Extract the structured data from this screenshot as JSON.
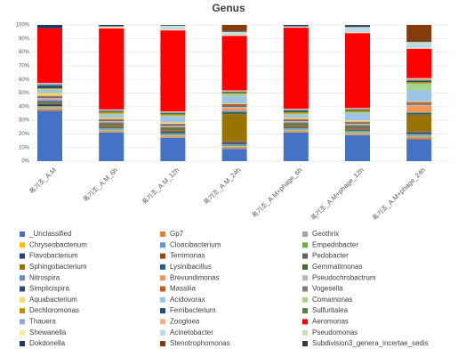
{
  "chart_data": {
    "type": "stacked_bar",
    "title": "Genus",
    "categories": [
      "폭기조_A.M",
      "폭기조_A.M_6h",
      "폭기조_A.M_12h",
      "폭기조_A.M_24h",
      "폭기조_A.M+phage_6h",
      "폭기조_A.M+phage_12h",
      "폭기조_A.M+phage_24h"
    ],
    "ylim": [
      0,
      100
    ],
    "yticks": [
      {
        "value": 0,
        "label": "0%"
      },
      {
        "value": 10,
        "label": "10%"
      },
      {
        "value": 20,
        "label": "20%"
      },
      {
        "value": 30,
        "label": "30%"
      },
      {
        "value": 40,
        "label": "40%"
      },
      {
        "value": 50,
        "label": "50%"
      },
      {
        "value": 60,
        "label": "60%"
      },
      {
        "value": 70,
        "label": "70%"
      },
      {
        "value": 80,
        "label": "80%"
      },
      {
        "value": 90,
        "label": "90%"
      },
      {
        "value": 100,
        "label": "100%"
      }
    ],
    "grid": true,
    "legend": "bottom",
    "series": [
      {
        "name": "_Unclassified",
        "color": "#4472C4",
        "values": [
          37,
          21,
          17,
          9,
          21,
          19,
          16
        ]
      },
      {
        "name": "Gp7",
        "color": "#ED7D31",
        "values": [
          1,
          0.5,
          0.5,
          0.5,
          0.5,
          0.5,
          1
        ]
      },
      {
        "name": "Geothrix",
        "color": "#A5A5A5",
        "values": [
          1,
          1,
          1,
          1,
          1,
          1,
          1
        ]
      },
      {
        "name": "Chryseobacterium",
        "color": "#FFC000",
        "values": [
          0.5,
          0.5,
          0.5,
          0.5,
          0.5,
          0.5,
          0.5
        ]
      },
      {
        "name": "Cloacibacterium",
        "color": "#5B9BD5",
        "values": [
          0.5,
          1,
          1,
          1,
          1,
          1,
          1
        ]
      },
      {
        "name": "Empedobacter",
        "color": "#70AD47",
        "values": [
          0.5,
          0.5,
          0.5,
          0.5,
          0.5,
          0.5,
          0.5
        ]
      },
      {
        "name": "Flavobacterium",
        "color": "#264478",
        "values": [
          1,
          0.5,
          1,
          1,
          0.5,
          0.5,
          1
        ]
      },
      {
        "name": "Terrimonas",
        "color": "#9E480E",
        "values": [
          0.5,
          0.5,
          0.5,
          0.5,
          0.5,
          0.5,
          0.5
        ]
      },
      {
        "name": "Pedobacter",
        "color": "#636363",
        "values": [
          0.5,
          0.5,
          0.5,
          0.5,
          0.5,
          0.5,
          0.5
        ]
      },
      {
        "name": "Sphingobacterium",
        "color": "#997300",
        "values": [
          0.5,
          1,
          1,
          20,
          1,
          1,
          12
        ]
      },
      {
        "name": "Lysinibacillus",
        "color": "#255E91",
        "values": [
          0.5,
          0.5,
          0.5,
          0.5,
          0.5,
          0.5,
          0.5
        ]
      },
      {
        "name": "Gemmatimonas",
        "color": "#43682B",
        "values": [
          0.5,
          0.5,
          0.5,
          1,
          0.5,
          0.5,
          1
        ]
      },
      {
        "name": "Nitrospira",
        "color": "#698ED0",
        "values": [
          1,
          0.5,
          0.5,
          1,
          0.5,
          0.5,
          0.5
        ]
      },
      {
        "name": "Brevundimonas",
        "color": "#F1975A",
        "values": [
          0.5,
          0.5,
          0.5,
          2,
          0.5,
          0.5,
          5
        ]
      },
      {
        "name": "Pseudochrobactrum",
        "color": "#B7B7B7",
        "values": [
          1,
          0.5,
          0.5,
          1,
          0.5,
          0.5,
          0.5
        ]
      },
      {
        "name": "Simplicispira",
        "color": "#2F4B7C",
        "values": [
          0.5,
          0.5,
          0.5,
          0.5,
          0.5,
          0.5,
          0.5
        ]
      },
      {
        "name": "Massilia",
        "color": "#C55A11",
        "values": [
          0.5,
          0.5,
          0.5,
          1,
          0.5,
          0.5,
          1
        ]
      },
      {
        "name": "Vogesella",
        "color": "#7F7F7F",
        "values": [
          0.5,
          0.5,
          0.5,
          0.5,
          0.5,
          0.5,
          0.5
        ]
      },
      {
        "name": "Aquabacterium",
        "color": "#FFD966",
        "values": [
          2,
          1,
          1,
          0.5,
          1,
          1,
          0.5
        ]
      },
      {
        "name": "Acidovorax",
        "color": "#9DC3E6",
        "values": [
          2,
          2,
          4,
          5,
          2,
          5,
          8
        ]
      },
      {
        "name": "Comamonas",
        "color": "#A9D18E",
        "values": [
          1,
          1,
          1,
          2,
          1,
          1,
          5
        ]
      },
      {
        "name": "Dechloromonas",
        "color": "#BF9000",
        "values": [
          0.5,
          1,
          1,
          0.5,
          1,
          1,
          1
        ]
      },
      {
        "name": "Ferribacterium",
        "color": "#1F4E79",
        "values": [
          2,
          0.5,
          0.5,
          0.5,
          1,
          0.5,
          1
        ]
      },
      {
        "name": "Sulfuritalea",
        "color": "#548235",
        "values": [
          0.5,
          0.5,
          0.5,
          0.5,
          0.5,
          0.5,
          0.5
        ]
      },
      {
        "name": "Thauera",
        "color": "#8FAADC",
        "values": [
          1,
          0.5,
          0.5,
          0.5,
          0.5,
          0.5,
          0.5
        ]
      },
      {
        "name": "Zoogloea",
        "color": "#F4B183",
        "values": [
          0.5,
          0.5,
          0.5,
          0.5,
          0.5,
          0.5,
          1
        ]
      },
      {
        "name": "Aeromonas",
        "color": "#FF0000",
        "values": [
          40,
          59.5,
          59.5,
          40,
          59.5,
          55,
          21.5
        ]
      },
      {
        "name": "Shewanella",
        "color": "#FFE699",
        "values": [
          0,
          0.5,
          0.5,
          0.5,
          0,
          0.5,
          0.5
        ]
      },
      {
        "name": "Acinetobacter",
        "color": "#BDD7EE",
        "values": [
          0,
          0.5,
          2,
          1.5,
          0.5,
          3,
          3
        ]
      },
      {
        "name": "Pseudomonas",
        "color": "#C5E0B4",
        "values": [
          0,
          0.5,
          1,
          1,
          0.5,
          1,
          1.5
        ]
      },
      {
        "name": "Dokdonella",
        "color": "#203864",
        "values": [
          2.5,
          1,
          0.5,
          0.5,
          1,
          1,
          0.5
        ]
      },
      {
        "name": "Stenotrophomonas",
        "color": "#843C0C",
        "values": [
          0,
          0,
          0,
          4.5,
          0,
          0,
          12
        ]
      },
      {
        "name": "Subdivision3_genera_incertae_sedis",
        "color": "#3A3A3A",
        "values": [
          0,
          0,
          0,
          0,
          0,
          0.5,
          0
        ]
      }
    ]
  }
}
